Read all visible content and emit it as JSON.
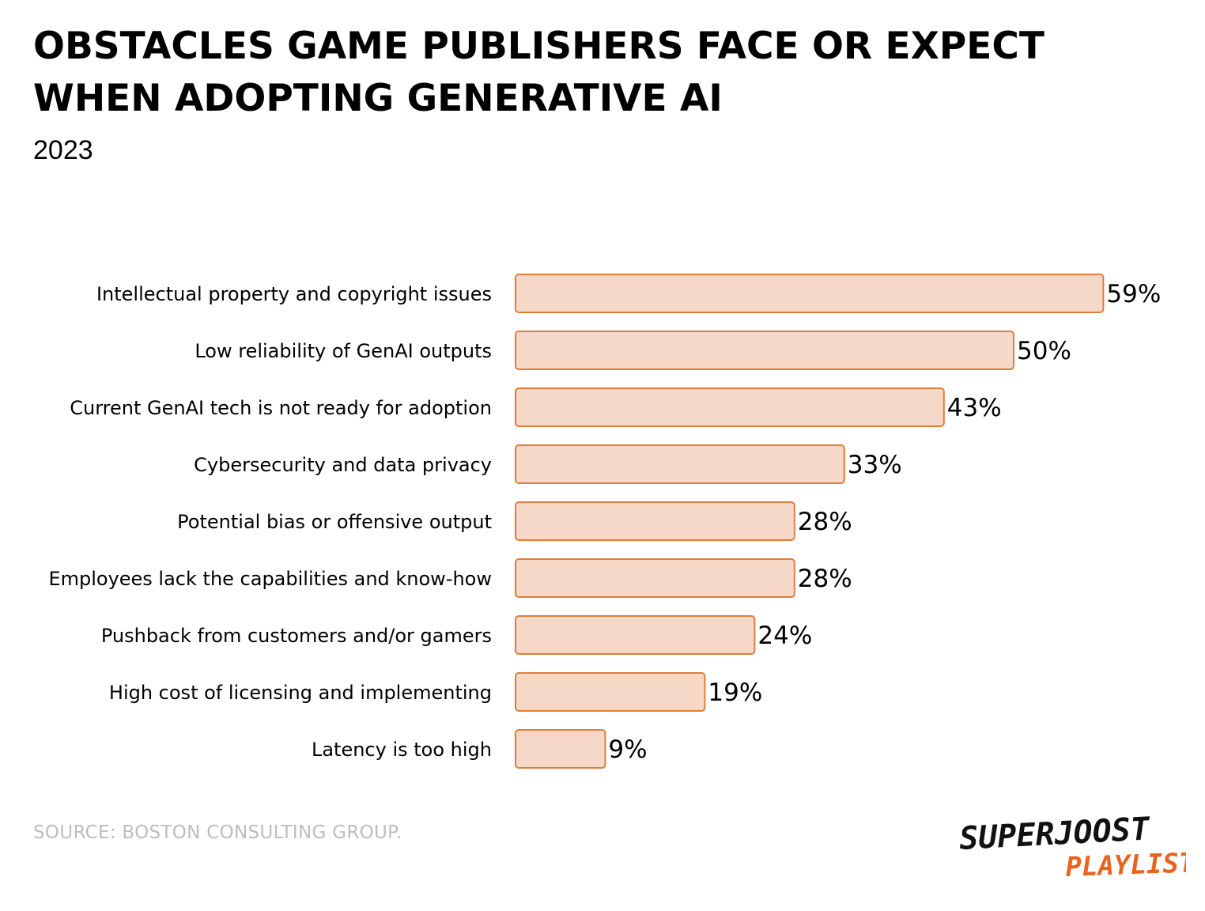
{
  "title": "OBSTACLES GAME PUBLISHERS FACE OR EXPECT WHEN ADOPTING GENERATIVE AI",
  "subtitle": "2023",
  "source": "SOURCE: BOSTON CONSULTING GROUP.",
  "logo": {
    "line1": "SUPERJOOST",
    "line2": "PLAYLIST"
  },
  "colors": {
    "bar_fill": "#f5d8c7",
    "bar_stroke": "#e07d3c",
    "accent": "#e8651f"
  },
  "chart_data": {
    "type": "bar",
    "orientation": "horizontal",
    "title": "OBSTACLES GAME PUBLISHERS FACE OR EXPECT WHEN ADOPTING GENERATIVE AI",
    "subtitle": "2023",
    "categories": [
      "Intellectual property and copyright issues",
      "Low reliability of GenAI outputs",
      "Current GenAI tech is not ready for adoption",
      "Cybersecurity and data privacy",
      "Potential bias or offensive output",
      "Employees lack the capabilities and know-how",
      "Pushback from customers and/or gamers",
      "High cost of licensing and implementing",
      "Latency is too high"
    ],
    "values": [
      59,
      50,
      43,
      33,
      28,
      28,
      24,
      19,
      9
    ],
    "value_labels": [
      "59%",
      "50%",
      "43%",
      "33%",
      "28%",
      "28%",
      "24%",
      "19%",
      "9%"
    ],
    "unit": "%",
    "grid": false,
    "legend": "none"
  }
}
